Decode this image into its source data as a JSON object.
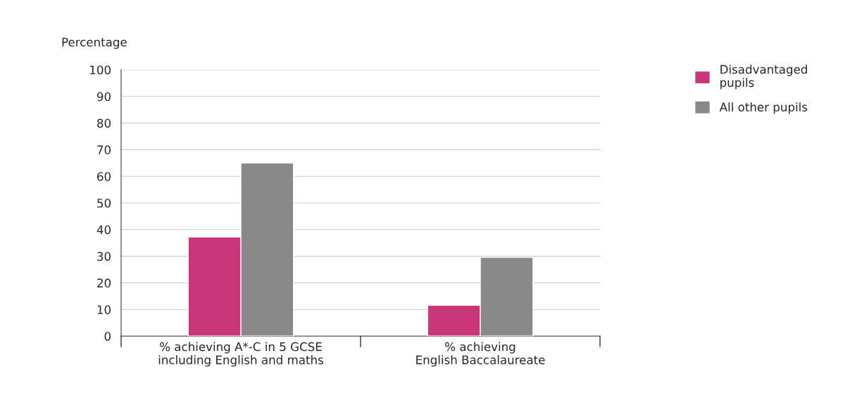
{
  "chart_data": {
    "type": "bar",
    "ylabel": "Percentage",
    "categories": [
      "% achieving A*-C in 5 GCSE\nincluding English and maths",
      "% achieving\nEnglish Baccalaureate"
    ],
    "series": [
      {
        "name": "Disadvantaged\npupils",
        "color": "#c8377a",
        "values": [
          37.2,
          11.6
        ]
      },
      {
        "name": "All other pupils",
        "color": "#898989",
        "values": [
          65,
          29.6
        ]
      }
    ],
    "ylim": [
      0,
      100
    ],
    "yticks": [
      0,
      10,
      20,
      30,
      40,
      50,
      60,
      70,
      80,
      90,
      100
    ],
    "grid": "y",
    "legend": "top right"
  }
}
